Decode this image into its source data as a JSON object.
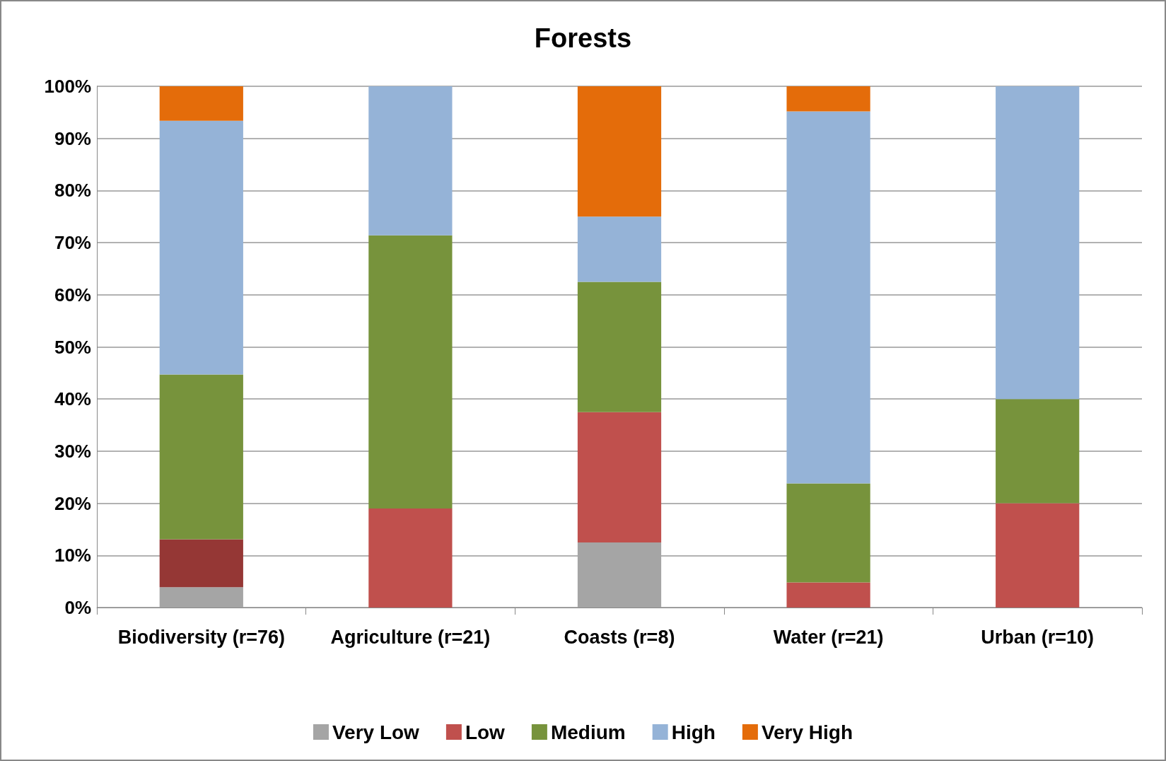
{
  "chart_data": {
    "type": "bar",
    "title": "Forests",
    "stacked": true,
    "categories": [
      "Biodiversity (r=76)",
      "Agriculture (r=21)",
      "Coasts (r=8)",
      "Water (r=21)",
      "Urban (r=10)"
    ],
    "series": [
      {
        "name": "Very Low",
        "color": "#a5a5a5",
        "values": [
          3.9,
          null,
          12.5,
          null,
          null
        ]
      },
      {
        "name": "Low",
        "color": "#c0504d",
        "colors": [
          "#953735",
          "#c0504d",
          "#c0504d",
          "#c0504d",
          "#c0504d"
        ],
        "values": [
          9.2,
          19.0,
          25.0,
          4.8,
          20.0
        ]
      },
      {
        "name": "Medium",
        "color": "#77933c",
        "values": [
          31.6,
          52.4,
          25.0,
          19.0,
          20.0
        ]
      },
      {
        "name": "High",
        "color": "#95b3d7",
        "values": [
          48.7,
          28.6,
          12.5,
          71.4,
          60.0
        ]
      },
      {
        "name": "Very High",
        "color": "#e46c0a",
        "values": [
          6.6,
          null,
          25.0,
          4.8,
          null
        ]
      }
    ],
    "ylim": [
      0,
      100
    ],
    "yticks": [
      {
        "value": 0,
        "label": "0%"
      },
      {
        "value": 10,
        "label": "10%"
      },
      {
        "value": 20,
        "label": "20%"
      },
      {
        "value": 30,
        "label": "30%"
      },
      {
        "value": 40,
        "label": "40%"
      },
      {
        "value": 50,
        "label": "50%"
      },
      {
        "value": 60,
        "label": "60%"
      },
      {
        "value": 70,
        "label": "70%"
      },
      {
        "value": 80,
        "label": "80%"
      },
      {
        "value": 90,
        "label": "90%"
      },
      {
        "value": 100,
        "label": "100%"
      }
    ],
    "grid": "y",
    "legend": "bottom"
  }
}
